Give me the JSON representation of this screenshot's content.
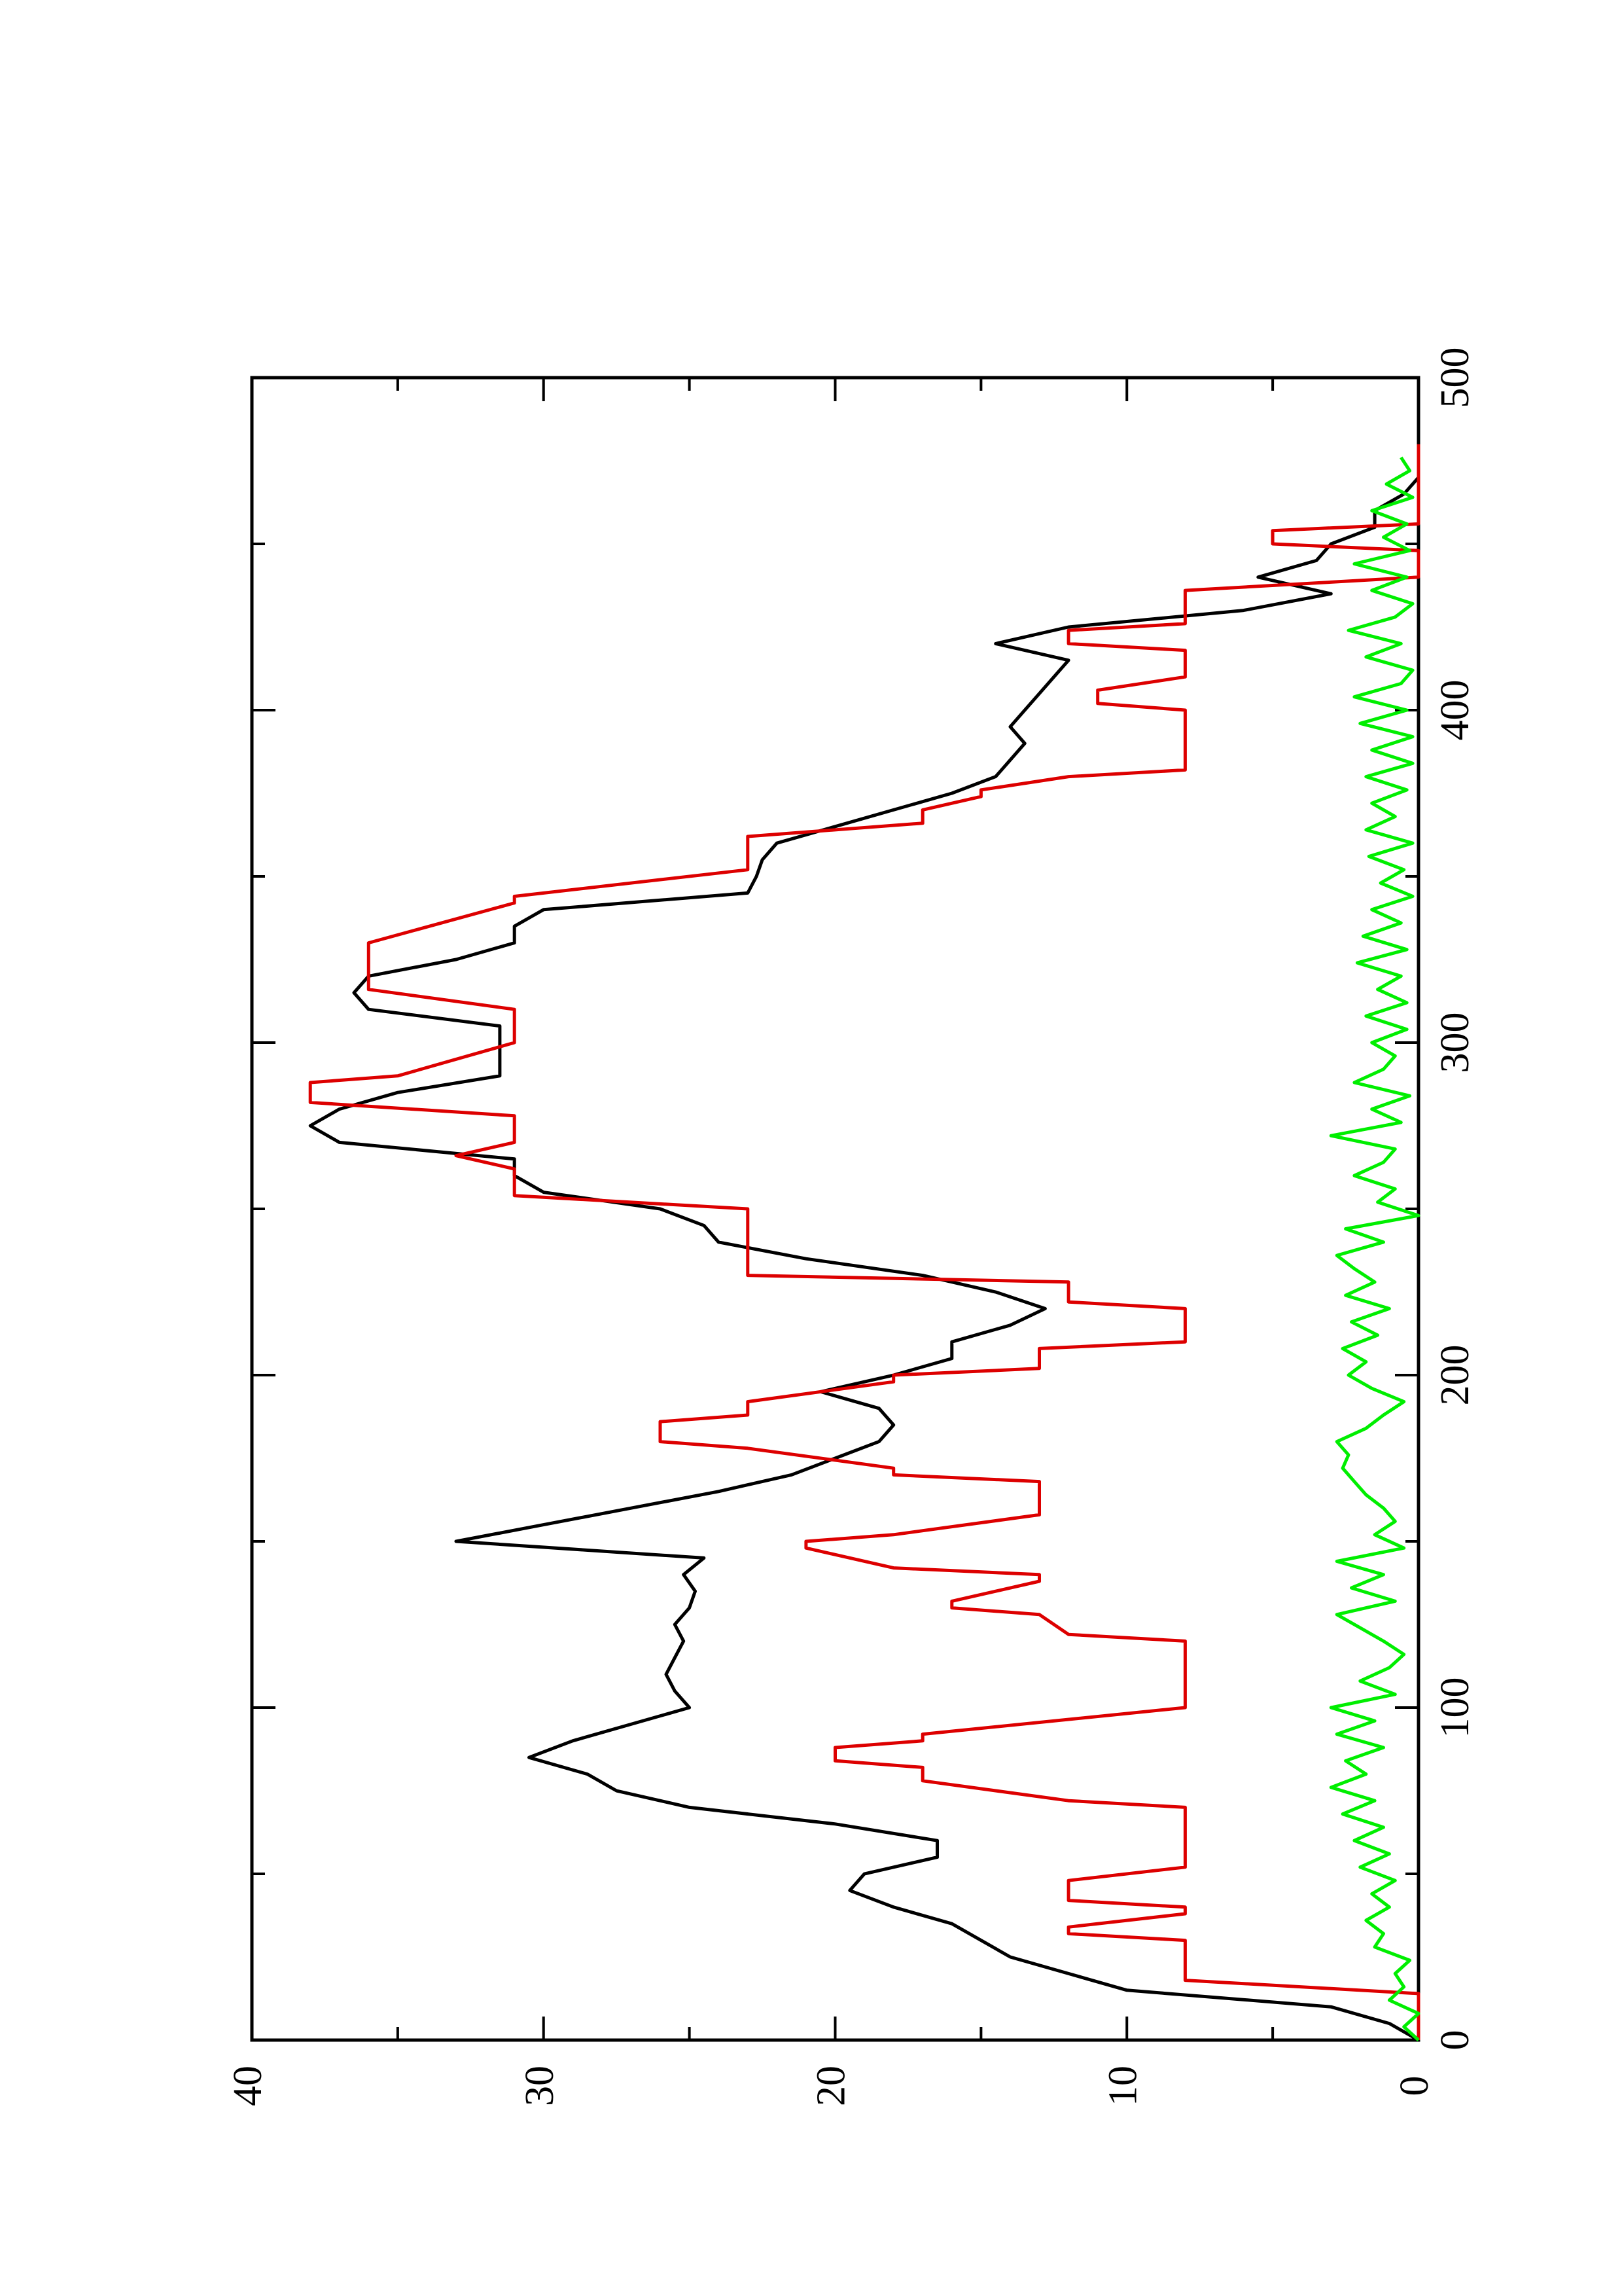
{
  "chart_data": {
    "type": "line",
    "orientation": "rotated-90-ccw",
    "title": "",
    "xlabel": "",
    "ylabel": "",
    "xlim": [
      0,
      500
    ],
    "ylim": [
      0,
      40
    ],
    "x_ticks": [
      "0",
      "100",
      "200",
      "300",
      "400",
      "500"
    ],
    "y_ticks": [
      "0",
      "10",
      "20",
      "30",
      "40"
    ],
    "grid": false,
    "legend": "none",
    "series": [
      {
        "color": "#000000",
        "x": [
          0,
          5,
          10,
          15,
          20,
          25,
          30,
          35,
          40,
          45,
          50,
          55,
          60,
          65,
          70,
          75,
          80,
          85,
          90,
          95,
          100,
          105,
          110,
          115,
          120,
          125,
          130,
          135,
          140,
          145,
          150,
          155,
          160,
          165,
          170,
          175,
          180,
          185,
          190,
          195,
          200,
          205,
          210,
          215,
          220,
          225,
          230,
          235,
          240,
          245,
          250,
          255,
          260,
          265,
          270,
          275,
          280,
          285,
          290,
          295,
          300,
          305,
          310,
          315,
          320,
          325,
          330,
          335,
          340,
          345,
          350,
          355,
          360,
          365,
          370,
          375,
          380,
          385,
          390,
          395,
          400,
          405,
          410,
          415,
          420,
          425,
          430,
          435,
          440,
          445,
          450,
          455,
          460,
          465,
          470,
          475,
          480
        ],
        "values": [
          0,
          1,
          3,
          10,
          12,
          14,
          15,
          16,
          18,
          19.5,
          19,
          16.5,
          16.5,
          20,
          25,
          27.5,
          28.5,
          30.5,
          29,
          27,
          25,
          25.5,
          25.8,
          25.5,
          25.2,
          25.5,
          25,
          24.8,
          25.2,
          24.5,
          33,
          30,
          27,
          24,
          21.5,
          20,
          18.5,
          18,
          18.5,
          20.5,
          18,
          16,
          16,
          14,
          12.8,
          14.5,
          17,
          21,
          24,
          24.5,
          26,
          30,
          31,
          31,
          37,
          38,
          37,
          35,
          31.5,
          31.5,
          31.5,
          31.5,
          36,
          36.5,
          36,
          33,
          31,
          31,
          30,
          23,
          22.7,
          22.5,
          22,
          20,
          18,
          16,
          14.5,
          14,
          13.5,
          14,
          13.5,
          13,
          12.5,
          12,
          14.5,
          12,
          6,
          3,
          5.5,
          3.5,
          3,
          1.5,
          1.5,
          0.5,
          0,
          0,
          0
        ]
      },
      {
        "color": "#dd0000",
        "x": [
          0,
          4,
          14,
          18,
          22,
          30,
          32,
          34,
          38,
          40,
          42,
          48,
          52,
          56,
          60,
          70,
          72,
          78,
          82,
          84,
          88,
          90,
          92,
          100,
          118,
          120,
          122,
          128,
          130,
          132,
          138,
          140,
          142,
          148,
          150,
          152,
          158,
          160,
          162,
          168,
          170,
          172,
          178,
          180,
          182,
          186,
          188,
          192,
          198,
          200,
          202,
          208,
          210,
          218,
          220,
          222,
          228,
          230,
          234,
          236,
          240,
          250,
          254,
          258,
          262,
          266,
          270,
          272,
          278,
          282,
          288,
          290,
          300,
          304,
          310,
          316,
          322,
          326,
          330,
          342,
          344,
          352,
          358,
          362,
          366,
          370,
          374,
          376,
          380,
          382,
          386,
          400,
          402,
          406,
          410,
          418,
          420,
          424,
          426,
          436,
          440,
          448,
          450,
          452,
          454,
          456,
          460,
          470,
          480
        ],
        "values": [
          0,
          0,
          0,
          8,
          8,
          8,
          12,
          12,
          8,
          8,
          12,
          12,
          8,
          8,
          8,
          8,
          12,
          17,
          17,
          20,
          20,
          17,
          17,
          8,
          8,
          8,
          12,
          13,
          16,
          16,
          13,
          13,
          18,
          21,
          21,
          18,
          13,
          13,
          13,
          13,
          18,
          18,
          23,
          26,
          26,
          26,
          23,
          23,
          18,
          18,
          13,
          13,
          8,
          8,
          8,
          12,
          12,
          23,
          23,
          23,
          23,
          23,
          31,
          31,
          31,
          33,
          31,
          31,
          31,
          38,
          38,
          35,
          31,
          31,
          31,
          36,
          36,
          36,
          36,
          31,
          31,
          23,
          23,
          23,
          17,
          17,
          15,
          15,
          12,
          8,
          8,
          8,
          11,
          11,
          8,
          8,
          12,
          12,
          8,
          8,
          0,
          0,
          5,
          5,
          5,
          0,
          0,
          0,
          0
        ]
      },
      {
        "color": "#00ee00",
        "x": [
          0,
          4,
          8,
          12,
          16,
          20,
          24,
          28,
          32,
          36,
          40,
          44,
          48,
          52,
          56,
          60,
          64,
          68,
          72,
          76,
          80,
          84,
          88,
          92,
          96,
          100,
          104,
          108,
          112,
          116,
          120,
          124,
          128,
          132,
          136,
          140,
          144,
          148,
          152,
          156,
          160,
          164,
          168,
          172,
          176,
          180,
          184,
          188,
          192,
          196,
          200,
          204,
          208,
          212,
          216,
          220,
          224,
          228,
          232,
          236,
          240,
          244,
          248,
          252,
          256,
          260,
          264,
          268,
          272,
          276,
          280,
          284,
          288,
          292,
          296,
          300,
          304,
          308,
          312,
          316,
          320,
          324,
          328,
          332,
          336,
          340,
          344,
          348,
          352,
          356,
          360,
          364,
          368,
          372,
          376,
          380,
          384,
          388,
          392,
          396,
          400,
          404,
          408,
          412,
          416,
          420,
          424,
          428,
          432,
          436,
          440,
          444,
          448,
          452,
          456,
          460,
          464,
          468,
          472,
          476
        ],
        "values": [
          0,
          0.5,
          0,
          1,
          0.5,
          0.8,
          0.3,
          1.5,
          1.2,
          1.8,
          1,
          1.6,
          0.8,
          2,
          1,
          2.2,
          1.2,
          2.6,
          1.5,
          3,
          1.8,
          2.5,
          1.2,
          2.8,
          1.5,
          3,
          0.8,
          2,
          1,
          0.5,
          1.2,
          2,
          2.8,
          0.8,
          2.3,
          1.2,
          2.8,
          0.5,
          1.5,
          0.8,
          1.2,
          1.8,
          2.2,
          2.6,
          2.4,
          2.8,
          1.8,
          1.2,
          0.5,
          1.6,
          2.4,
          1.8,
          2.6,
          1.4,
          2.3,
          1,
          2.5,
          1.5,
          2.2,
          2.8,
          1.2,
          2.5,
          0,
          1.4,
          0.8,
          2.2,
          1.2,
          0.8,
          3,
          0.6,
          1.6,
          0.3,
          2.2,
          1.2,
          0.8,
          1.6,
          0.4,
          1.8,
          0.4,
          1.4,
          0.6,
          2.1,
          0.4,
          1.9,
          0.6,
          1.6,
          0.2,
          1.3,
          0.5,
          1.7,
          0.2,
          1.8,
          0.8,
          1.6,
          0.4,
          1.8,
          0.2,
          1.6,
          0.2,
          2,
          0.4,
          2.2,
          0.6,
          0.2,
          1.8,
          0.6,
          2.4,
          0.8,
          0.2,
          1.6,
          0.4,
          2.2,
          0.3,
          1.2,
          0.4,
          1.6,
          0.2,
          1.1,
          0.3,
          0.6
        ]
      }
    ]
  }
}
